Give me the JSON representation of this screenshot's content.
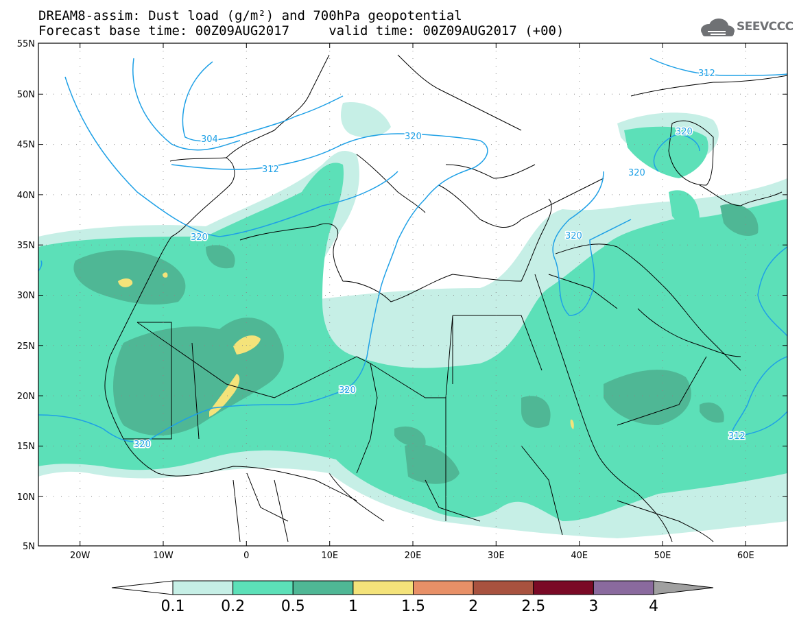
{
  "title": {
    "line1": "DREAM8-assim: Dust load (g/m²) and 700hPa geopotential",
    "line2": "Forecast base time: 00Z09AUG2017     valid time: 00Z09AUG2017 (+00)"
  },
  "logo": {
    "text": "SEEVCCC",
    "icon": "cloud-icon"
  },
  "map": {
    "lat_labels": [
      "55N",
      "50N",
      "45N",
      "40N",
      "35N",
      "30N",
      "25N",
      "20N",
      "15N",
      "10N",
      "5N"
    ],
    "lon_labels": [
      "20W",
      "10W",
      "0",
      "10E",
      "20E",
      "30E",
      "40E",
      "50E",
      "60E"
    ],
    "lat_range": [
      5,
      55
    ],
    "lon_range": [
      -25,
      65
    ],
    "contour_labels": [
      "304",
      "312",
      "320",
      "320",
      "320",
      "320",
      "320",
      "320",
      "320",
      "312",
      "312"
    ]
  },
  "colorbar": {
    "labels": [
      "0.1",
      "0.2",
      "0.5",
      "1",
      "1.5",
      "2",
      "2.5",
      "3",
      "4"
    ],
    "colors": [
      "#c6efe6",
      "#5ce0b8",
      "#4fb795",
      "#f4e37a",
      "#e89067",
      "#a8523f",
      "#7a0a26",
      "#8a6a9e"
    ],
    "under_color": "#ffffff",
    "over_color": "#a0a0a0"
  }
}
